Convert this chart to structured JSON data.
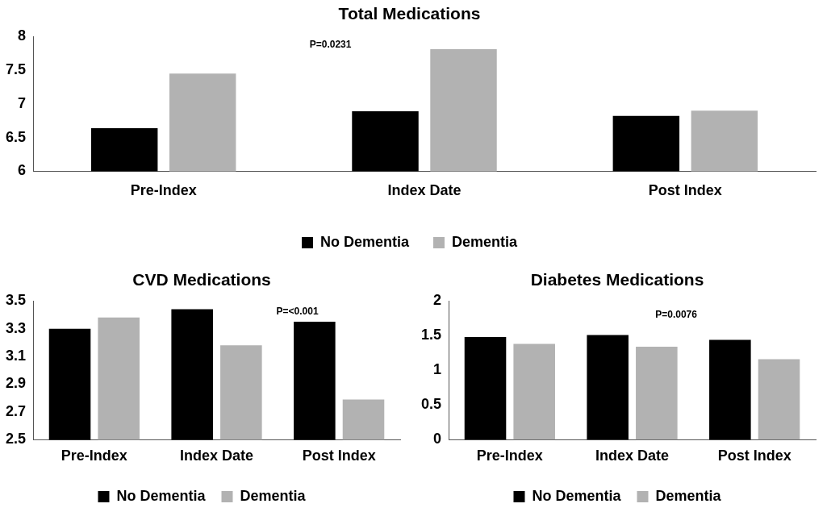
{
  "chart_data": [
    {
      "type": "bar",
      "title": "Total Medications",
      "categories": [
        "Pre-Index",
        "Index Date",
        "Post Index"
      ],
      "series": [
        {
          "name": "No Dementia",
          "color": "#000000",
          "values": [
            6.64,
            6.89,
            6.82
          ]
        },
        {
          "name": "Dementia",
          "color": "#b2b2b2",
          "values": [
            7.45,
            7.81,
            6.9
          ]
        }
      ],
      "ylim": [
        6,
        8
      ],
      "yticks": [
        6,
        6.5,
        7,
        7.5,
        8
      ],
      "grid": false,
      "legend": "bottom",
      "annotations": [
        "P=0.0231"
      ]
    },
    {
      "type": "bar",
      "title": "CVD Medications",
      "categories": [
        "Pre-Index",
        "Index Date",
        "Post Index"
      ],
      "series": [
        {
          "name": "No Dementia",
          "color": "#000000",
          "values": [
            3.3,
            3.44,
            3.35
          ]
        },
        {
          "name": "Dementia",
          "color": "#b2b2b2",
          "values": [
            3.38,
            3.18,
            2.79
          ]
        }
      ],
      "ylim": [
        2.5,
        3.5
      ],
      "yticks": [
        2.5,
        2.7,
        2.9,
        3.1,
        3.3,
        3.5
      ],
      "grid": false,
      "legend": "bottom",
      "annotations": [
        "P=<0.001"
      ]
    },
    {
      "type": "bar",
      "title": "Diabetes Medications",
      "categories": [
        "Pre-Index",
        "Index Date",
        "Post Index"
      ],
      "series": [
        {
          "name": "No Dementia",
          "color": "#000000",
          "values": [
            1.48,
            1.51,
            1.44
          ]
        },
        {
          "name": "Dementia",
          "color": "#b2b2b2",
          "values": [
            1.38,
            1.34,
            1.16
          ]
        }
      ],
      "ylim": [
        0,
        2
      ],
      "yticks": [
        0,
        0.5,
        1,
        1.5,
        2
      ],
      "grid": false,
      "legend": "bottom",
      "annotations": [
        "P=0.0076"
      ]
    }
  ]
}
